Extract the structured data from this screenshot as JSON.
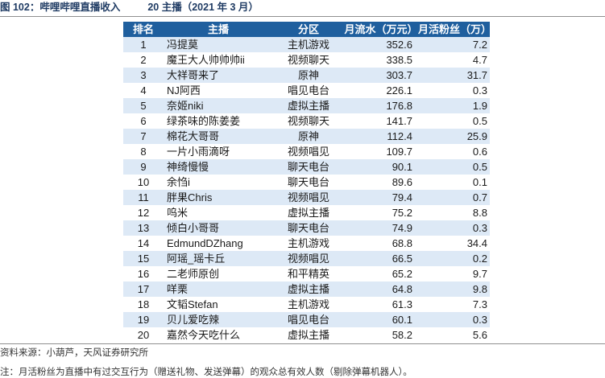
{
  "header": {
    "figure_label": "图 102：哔哩哔哩直播收入",
    "subtitle": "20 主播（2021 年 3 月）"
  },
  "table": {
    "columns": [
      "排名",
      "主播",
      "分区",
      "月流水（万元）",
      "月活粉丝（万）"
    ],
    "rows": [
      {
        "rank": "1",
        "name": "冯提莫",
        "zone": "主机游戏",
        "revenue": "352.6",
        "fans": "7.2"
      },
      {
        "rank": "2",
        "name": "魔王大人帅帅帅ii",
        "zone": "视频聊天",
        "revenue": "338.5",
        "fans": "4.7"
      },
      {
        "rank": "3",
        "name": "大祥哥来了",
        "zone": "原神",
        "revenue": "303.7",
        "fans": "31.7"
      },
      {
        "rank": "4",
        "name": "NJ阿西",
        "zone": "唱见电台",
        "revenue": "226.1",
        "fans": "0.3"
      },
      {
        "rank": "5",
        "name": "奈姬niki",
        "zone": "虚拟主播",
        "revenue": "176.8",
        "fans": "1.9"
      },
      {
        "rank": "6",
        "name": "绿茶味的陈姜姜",
        "zone": "视频聊天",
        "revenue": "141.7",
        "fans": "0.5"
      },
      {
        "rank": "7",
        "name": "棉花大哥哥",
        "zone": "原神",
        "revenue": "112.4",
        "fans": "25.9"
      },
      {
        "rank": "8",
        "name": "一片小雨滴呀",
        "zone": "视频唱见",
        "revenue": "109.7",
        "fans": "0.6"
      },
      {
        "rank": "9",
        "name": "神绮慢慢",
        "zone": "聊天电台",
        "revenue": "90.1",
        "fans": "0.5"
      },
      {
        "rank": "10",
        "name": "余㤘i",
        "zone": "聊天电台",
        "revenue": "89.6",
        "fans": "0.1"
      },
      {
        "rank": "11",
        "name": "胖果Chris",
        "zone": "视频唱见",
        "revenue": "79.4",
        "fans": "0.7"
      },
      {
        "rank": "12",
        "name": "呜米",
        "zone": "虚拟主播",
        "revenue": "75.2",
        "fans": "8.8"
      },
      {
        "rank": "13",
        "name": "倾白小哥哥",
        "zone": "聊天电台",
        "revenue": "74.9",
        "fans": "0.3"
      },
      {
        "rank": "14",
        "name": "EdmundDZhang",
        "zone": "主机游戏",
        "revenue": "68.8",
        "fans": "34.4"
      },
      {
        "rank": "15",
        "name": "阿瑶_瑶卡丘",
        "zone": "视频唱见",
        "revenue": "66.5",
        "fans": "0.2"
      },
      {
        "rank": "16",
        "name": "二老师原创",
        "zone": "和平精英",
        "revenue": "65.2",
        "fans": "9.7"
      },
      {
        "rank": "17",
        "name": "咩栗",
        "zone": "虚拟主播",
        "revenue": "64.8",
        "fans": "9.8"
      },
      {
        "rank": "18",
        "name": "文韬Stefan",
        "zone": "主机游戏",
        "revenue": "61.3",
        "fans": "7.3"
      },
      {
        "rank": "19",
        "name": "贝儿爱吃辣",
        "zone": "唱见电台",
        "revenue": "60.1",
        "fans": "0.3"
      },
      {
        "rank": "20",
        "name": "嘉然今天吃什么",
        "zone": "虚拟主播",
        "revenue": "58.2",
        "fans": "5.6"
      }
    ]
  },
  "footer": {
    "source": "资料来源：小葫芦，天风证券研究所",
    "note": "注：月活粉丝为直播中有过交互行为（赠送礼物、发送弹幕）的观众总有效人数（剔除弹幕机器人）。"
  },
  "colors": {
    "header_bg": "#1f5f9e",
    "stripe_bg": "#dde9f6",
    "title_text": "#1f3b63"
  }
}
